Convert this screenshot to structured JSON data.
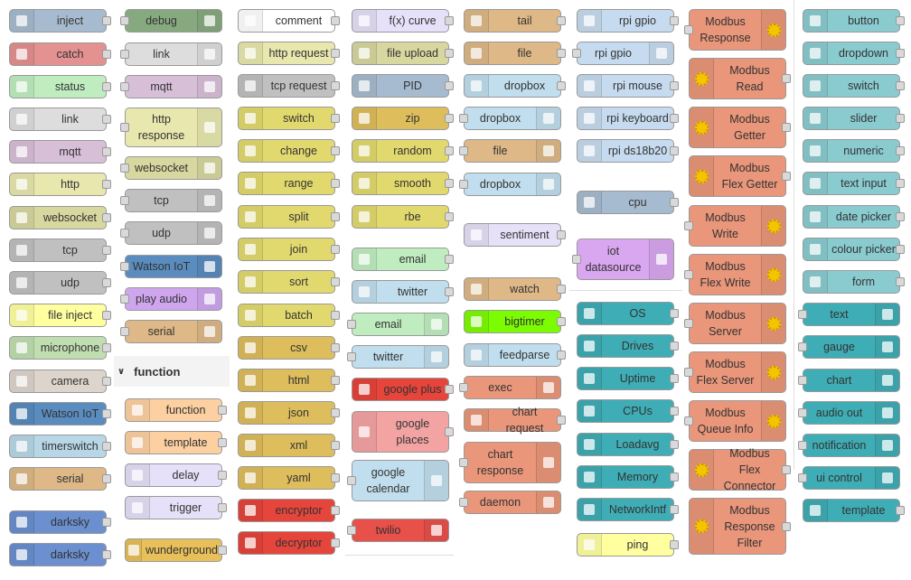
{
  "palette": {
    "section_header": "function",
    "columns": [
      [
        "inject",
        "catch",
        "status",
        "link",
        "mqtt",
        "http",
        "websocket",
        "tcp",
        "udp",
        "file inject",
        "microphone",
        "camera",
        "Watson IoT",
        "timerswitch",
        "serial",
        "darksky",
        "darksky"
      ],
      [
        "debug",
        "link",
        "mqtt",
        "http response",
        "websocket",
        "tcp",
        "udp",
        "Watson IoT",
        "play audio",
        "serial",
        "function",
        "template",
        "delay",
        "trigger",
        "wunderground"
      ],
      [
        "comment",
        "http request",
        "tcp request",
        "switch",
        "change",
        "range",
        "split",
        "join",
        "sort",
        "batch",
        "csv",
        "html",
        "json",
        "xml",
        "yaml",
        "encryptor",
        "decryptor"
      ],
      [
        "f(x) curve",
        "file upload",
        "PID",
        "zip",
        "random",
        "smooth",
        "rbe",
        "email",
        "twitter",
        "email",
        "twitter",
        "google plus",
        "google places",
        "google calendar",
        "twilio"
      ],
      [
        "tail",
        "file",
        "dropbox",
        "dropbox",
        "file",
        "dropbox",
        "sentiment",
        "watch",
        "bigtimer",
        "feedparse",
        "exec",
        "chart request",
        "chart response",
        "daemon"
      ],
      [
        "rpi gpio",
        "rpi gpio",
        "rpi mouse",
        "rpi keyboard",
        "rpi ds18b20",
        "cpu",
        "iot datasource",
        "OS",
        "Drives",
        "Uptime",
        "CPUs",
        "Loadavg",
        "Memory",
        "NetworkIntf",
        "ping"
      ],
      [
        "Modbus Response",
        "Modbus Read",
        "Modbus Getter",
        "Modbus Flex Getter",
        "Modbus Write",
        "Modbus Flex Write",
        "Modbus Server",
        "Modbus Flex Server",
        "Modbus Queue Info",
        "Modbus Flex Connector",
        "Modbus Response Filter"
      ],
      [
        "button",
        "dropdown",
        "switch",
        "slider",
        "numeric",
        "text input",
        "date picker",
        "colour picker",
        "form",
        "text",
        "gauge",
        "chart",
        "audio out",
        "notification",
        "ui control",
        "template"
      ]
    ]
  }
}
